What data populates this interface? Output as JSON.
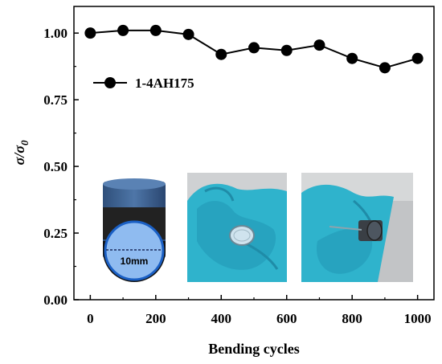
{
  "chart_data": {
    "type": "line",
    "x": [
      0,
      100,
      200,
      300,
      400,
      500,
      600,
      700,
      800,
      900,
      1000
    ],
    "series": [
      {
        "name": "1-4AH175",
        "values": [
          1.0,
          1.01,
          1.01,
          0.995,
          0.92,
          0.945,
          0.935,
          0.955,
          0.905,
          0.87,
          0.905
        ]
      }
    ],
    "xlabel": "Bending cycles",
    "ylabel": "σ/σ",
    "ylabel_sub": "0",
    "xlim": [
      -50,
      1050
    ],
    "ylim": [
      0,
      1.1
    ],
    "xticks": [
      "0",
      "200",
      "400",
      "600",
      "800",
      "1000"
    ],
    "yticks": [
      "0.00",
      "0.25",
      "0.50",
      "0.75",
      "1.00"
    ],
    "legend_position": "upper-left",
    "grid": false,
    "colors": {
      "series": "#000000",
      "inset_blue": "#4a8fd4",
      "glove": "#37b7cf"
    },
    "insets": {
      "diagram_label": "10mm",
      "photo_1": "photo-flat-sample",
      "photo_2": "photo-bent-sample"
    }
  }
}
